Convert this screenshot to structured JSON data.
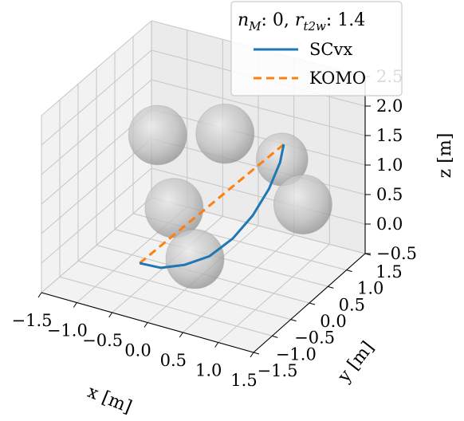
{
  "chart_data": {
    "type": "line",
    "projection": "3d",
    "title": "",
    "legend": {
      "title": "n_M: 0, r_t2w: 1.4",
      "title_parts": {
        "var1": "n",
        "sub1": "M",
        "val1": ": 0, ",
        "var2": "r",
        "sub2": "t2w",
        "val2": ": 1.4"
      },
      "placement": "top-right"
    },
    "xlabel": "x [m]",
    "ylabel": "y [m]",
    "zlabel": "z [m]",
    "xlim": [
      -1.5,
      1.5
    ],
    "ylim": [
      -1.5,
      1.5
    ],
    "zlim": [
      -0.5,
      2.5
    ],
    "xticks": [
      "−1.5",
      "−1.0",
      "−0.5",
      "0.0",
      "0.5",
      "1.0",
      "1.5"
    ],
    "yticks": [
      "−1.5",
      "−1.0",
      "−0.5",
      "0.0",
      "0.5",
      "1.0",
      "1.5"
    ],
    "zticks": [
      "−0.5",
      "0.0",
      "0.5",
      "1.0",
      "1.5",
      "2.0",
      "2.5"
    ],
    "grid": true,
    "obstacles": [
      {
        "name": "sphere",
        "center": [
          -1.0,
          0.7,
          1.15
        ],
        "radius": 0.45
      },
      {
        "name": "sphere",
        "center": [
          0.0,
          0.6,
          1.55
        ],
        "radius": 0.45
      },
      {
        "name": "sphere",
        "center": [
          0.75,
          0.7,
          1.3
        ],
        "radius": 0.4
      },
      {
        "name": "sphere",
        "center": [
          1.2,
          0.4,
          0.85
        ],
        "radius": 0.45
      },
      {
        "name": "sphere",
        "center": [
          -0.25,
          -0.3,
          0.7
        ],
        "radius": 0.45
      },
      {
        "name": "sphere",
        "center": [
          0.2,
          -0.6,
          0.15
        ],
        "radius": 0.45
      }
    ],
    "series": [
      {
        "name": "SCvx",
        "color": "#1f77b4",
        "dash": "solid",
        "x": [
          -0.45,
          -0.2,
          0.05,
          0.3,
          0.5,
          0.65,
          0.75,
          0.8,
          0.8
        ],
        "y": [
          -0.85,
          -0.75,
          -0.6,
          -0.4,
          -0.15,
          0.1,
          0.35,
          0.55,
          0.65
        ],
        "z": [
          0.0,
          -0.05,
          0.0,
          0.12,
          0.35,
          0.65,
          1.0,
          1.35,
          1.6
        ]
      },
      {
        "name": "KOMO",
        "color": "#ff7f0e",
        "dash": "dashed",
        "x": [
          -0.45,
          0.8
        ],
        "y": [
          -0.85,
          0.65
        ],
        "z": [
          0.0,
          1.6
        ]
      }
    ]
  }
}
